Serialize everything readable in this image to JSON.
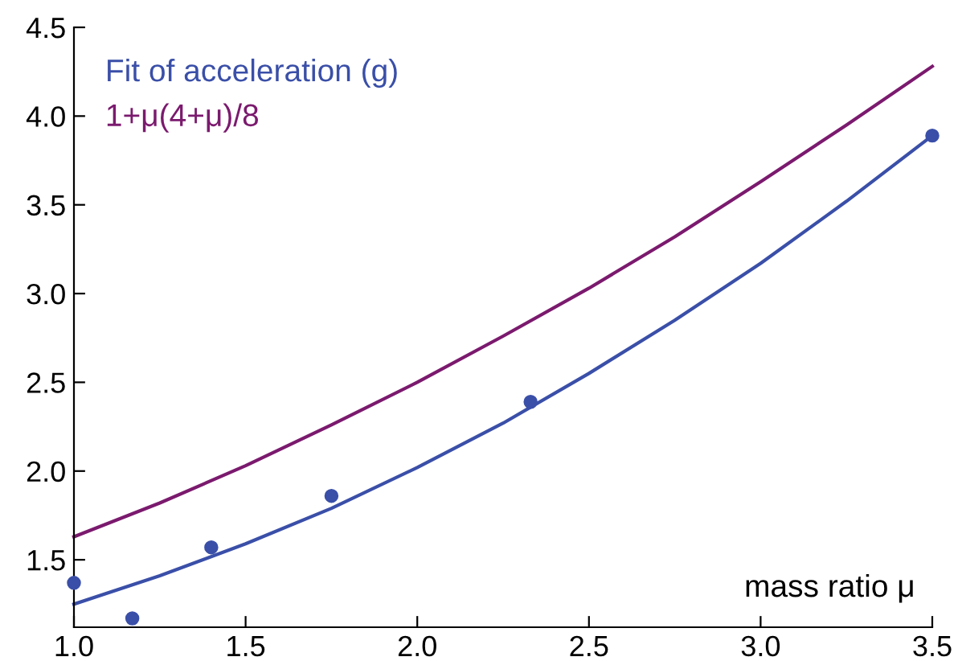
{
  "chart_data": {
    "type": "line",
    "xlabel": "mass ratio μ",
    "xlim": [
      1.0,
      3.5
    ],
    "ylim": [
      1.12,
      4.5
    ],
    "xticks": [
      {
        "value": 1.0,
        "label": "1.0"
      },
      {
        "value": 1.5,
        "label": "1.5"
      },
      {
        "value": 2.0,
        "label": "2.0"
      },
      {
        "value": 2.5,
        "label": "2.5"
      },
      {
        "value": 3.0,
        "label": "3.0"
      },
      {
        "value": 3.5,
        "label": "3.5"
      }
    ],
    "yticks": [
      {
        "value": 1.5,
        "label": "1.5"
      },
      {
        "value": 2.0,
        "label": "2.0"
      },
      {
        "value": 2.5,
        "label": "2.5"
      },
      {
        "value": 3.0,
        "label": "3.0"
      },
      {
        "value": 3.5,
        "label": "3.5"
      },
      {
        "value": 4.0,
        "label": "4.0"
      },
      {
        "value": 4.5,
        "label": "4.5"
      }
    ],
    "grid": false,
    "legend": "top left",
    "marker": "none",
    "line_style": "solid",
    "series": [
      {
        "name": "Fit of acceleration (g)",
        "color": "#3a4fa8",
        "x": [
          1.0,
          1.25,
          1.5,
          1.75,
          2.0,
          2.25,
          2.5,
          2.75,
          3.0,
          3.25,
          3.5
        ],
        "values": [
          1.25,
          1.41,
          1.59,
          1.79,
          2.02,
          2.27,
          2.55,
          2.85,
          3.17,
          3.52,
          3.89
        ]
      },
      {
        "name": "1+μ(4+μ)/8",
        "color": "#7b1a6e",
        "x": [
          1.0,
          1.25,
          1.5,
          1.75,
          2.0,
          2.25,
          2.5,
          2.75,
          3.0,
          3.25,
          3.5
        ],
        "values": [
          1.63,
          1.82,
          2.03,
          2.26,
          2.5,
          2.76,
          3.03,
          3.32,
          3.63,
          3.95,
          4.28
        ]
      },
      {
        "type": "scatter",
        "marker": "circle",
        "color": "#3a4fa8",
        "x": [
          1.0,
          1.17,
          1.4,
          1.75,
          2.33,
          3.5
        ],
        "values": [
          1.37,
          1.17,
          1.57,
          1.86,
          2.39,
          3.89
        ]
      }
    ]
  }
}
